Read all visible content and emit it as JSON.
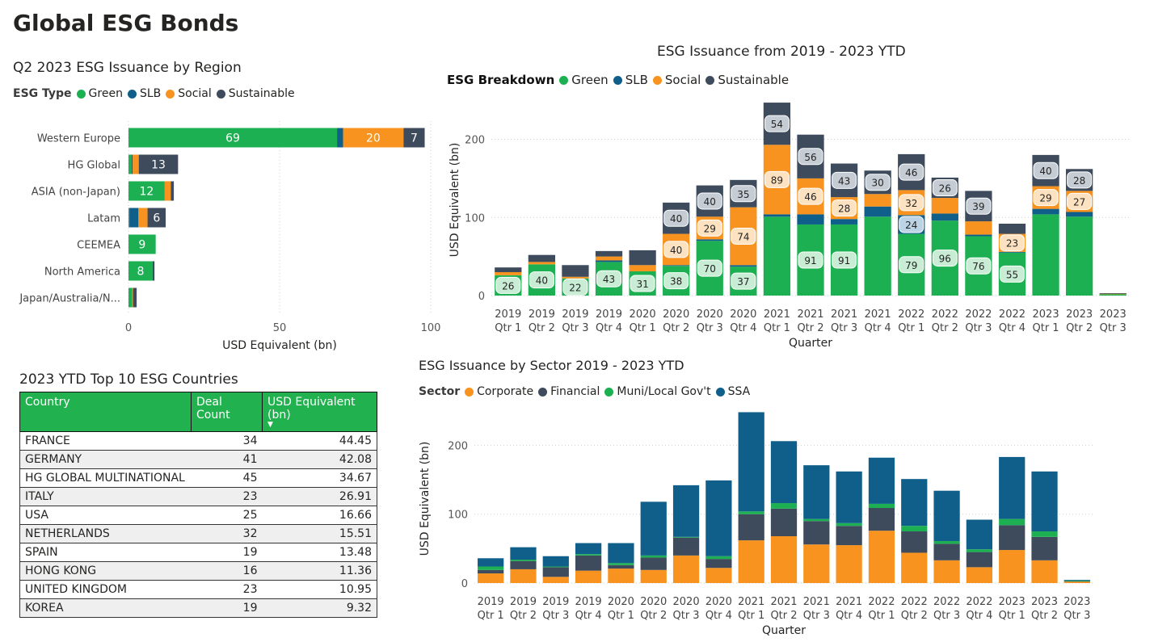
{
  "page": {
    "title": "Global ESG Bonds"
  },
  "colors": {
    "green": "#1DB052",
    "slb": "#0F5F8A",
    "social": "#F7931E",
    "sustainable": "#3D4B5C",
    "corporate": "#F7931E",
    "financial": "#3D4B5C",
    "muni": "#1DB052",
    "ssa": "#0F5F8A",
    "table_header": "#21B14E"
  },
  "region": {
    "title": "Q2 2023 ESG Issuance by Region",
    "legend_title": "ESG Type",
    "legend": [
      "Green",
      "SLB",
      "Social",
      "Sustainable"
    ]
  },
  "quarterly": {
    "title": "ESG Issuance from 2019 - 2023 YTD",
    "legend_title": "ESG Breakdown",
    "legend": [
      "Green",
      "SLB",
      "Social",
      "Sustainable"
    ]
  },
  "sector": {
    "title": "ESG Issuance by Sector 2019 - 2023 YTD",
    "legend_title": "Sector",
    "legend": [
      "Corporate",
      "Financial",
      "Muni/Local Gov't",
      "SSA"
    ]
  },
  "table": {
    "title": "2023 YTD Top 10 ESG Countries",
    "headers": [
      "Country",
      "Deal Count",
      "USD Equivalent (bn)"
    ],
    "sort_indicator": "▼",
    "rows": [
      [
        "FRANCE",
        "34",
        "44.45"
      ],
      [
        "GERMANY",
        "41",
        "42.08"
      ],
      [
        "HG GLOBAL MULTINATIONAL",
        "45",
        "34.67"
      ],
      [
        "ITALY",
        "23",
        "26.91"
      ],
      [
        "USA",
        "25",
        "16.66"
      ],
      [
        "NETHERLANDS",
        "32",
        "15.51"
      ],
      [
        "SPAIN",
        "19",
        "13.48"
      ],
      [
        "HONG KONG",
        "16",
        "11.36"
      ],
      [
        "UNITED KINGDOM",
        "23",
        "10.95"
      ],
      [
        "KOREA",
        "19",
        "9.32"
      ]
    ]
  },
  "chart_data": [
    {
      "type": "bar",
      "orientation": "horizontal",
      "stacked": true,
      "title": "Q2 2023 ESG Issuance by Region",
      "xlabel": "USD Equivalent (bn)",
      "ylabel": "",
      "xlim": [
        0,
        100
      ],
      "xticks": [
        "0",
        "50",
        "100"
      ],
      "grid": true,
      "legend_placement": "top-left",
      "categories": [
        "Western Europe",
        "HG Global",
        "ASIA (non-Japan)",
        "Latam",
        "CEEMEA",
        "North America",
        "Japan/Australia/N..."
      ],
      "series": [
        {
          "name": "Green",
          "values": [
            69,
            1,
            12,
            0.3,
            9,
            8,
            1.2
          ],
          "labels": [
            "69",
            "",
            "12",
            "",
            "9",
            "8",
            ""
          ]
        },
        {
          "name": "SLB",
          "values": [
            2,
            0.4,
            0,
            3,
            0,
            0,
            0
          ],
          "labels": [
            "",
            "",
            "",
            "",
            "",
            "",
            ""
          ]
        },
        {
          "name": "Social",
          "values": [
            20,
            2,
            2,
            3,
            0,
            0,
            0.3
          ],
          "labels": [
            "20",
            "",
            "",
            "",
            "",
            "",
            ""
          ]
        },
        {
          "name": "Sustainable",
          "values": [
            7,
            13,
            1,
            6,
            0,
            0.6,
            1.2
          ],
          "labels": [
            "7",
            "13",
            "",
            "6",
            "",
            "",
            ""
          ]
        }
      ]
    },
    {
      "type": "bar",
      "stacked": true,
      "title": "ESG Issuance from 2019 - 2023 YTD",
      "xlabel": "Quarter",
      "ylabel": "USD Equivalent (bn)",
      "ylim": [
        0,
        245
      ],
      "yticks": [
        "0",
        "100",
        "200"
      ],
      "grid": true,
      "legend_placement": "top-left",
      "categories": [
        "2019 Qtr 1",
        "2019 Qtr 2",
        "2019 Qtr 3",
        "2019 Qtr 4",
        "2020 Qtr 1",
        "2020 Qtr 2",
        "2020 Qtr 3",
        "2020 Qtr 4",
        "2021 Qtr 1",
        "2021 Qtr 2",
        "2021 Qtr 3",
        "2021 Qtr 4",
        "2022 Qtr 1",
        "2022 Qtr 2",
        "2022 Qtr 3",
        "2022 Qtr 4",
        "2023 Qtr 1",
        "2023 Qtr 2",
        "2023 Qtr 3"
      ],
      "series": [
        {
          "name": "Green",
          "values": [
            26,
            40,
            22,
            43,
            31,
            38,
            70,
            37,
            101,
            91,
            91,
            101,
            79,
            96,
            76,
            55,
            104,
            101,
            2
          ],
          "labels": [
            "26",
            "40",
            "22",
            "43",
            "31",
            "38",
            "70",
            "37",
            "",
            "91",
            "91",
            "",
            "79",
            "96",
            "76",
            "55",
            "",
            "",
            ""
          ]
        },
        {
          "name": "SLB",
          "values": [
            0,
            0,
            0,
            2,
            0,
            1,
            2,
            2,
            3,
            13,
            7,
            13,
            24,
            9,
            2,
            1,
            7,
            6,
            0
          ],
          "labels": [
            "",
            "",
            "",
            "",
            "",
            "",
            "",
            "",
            "",
            "",
            "",
            "",
            "24",
            "",
            "",
            "",
            "",
            "",
            ""
          ]
        },
        {
          "name": "Social",
          "values": [
            4,
            3,
            2,
            5,
            8,
            40,
            29,
            74,
            89,
            46,
            28,
            16,
            32,
            20,
            17,
            23,
            29,
            27,
            0.5
          ],
          "labels": [
            "",
            "",
            "",
            "",
            "",
            "40",
            "29",
            "74",
            "89",
            "46",
            "28",
            "",
            "32",
            "",
            "",
            "23",
            "29",
            "27",
            ""
          ]
        },
        {
          "name": "Sustainable",
          "values": [
            6,
            9,
            15,
            7,
            19,
            40,
            40,
            35,
            54,
            56,
            43,
            30,
            46,
            26,
            39,
            13,
            40,
            28,
            0.5
          ],
          "labels": [
            "",
            "",
            "",
            "",
            "",
            "40",
            "40",
            "35",
            "54",
            "56",
            "43",
            "30",
            "46",
            "26",
            "39",
            "",
            "40",
            "28",
            ""
          ]
        }
      ]
    },
    {
      "type": "bar",
      "stacked": true,
      "title": "ESG Issuance by Sector 2019 - 2023 YTD",
      "xlabel": "Quarter",
      "ylabel": "USD Equivalent (bn)",
      "ylim": [
        0,
        245
      ],
      "yticks": [
        "0",
        "100",
        "200"
      ],
      "grid": true,
      "legend_placement": "top-left",
      "categories": [
        "2019 Qtr 1",
        "2019 Qtr 2",
        "2019 Qtr 3",
        "2019 Qtr 4",
        "2020 Qtr 1",
        "2020 Qtr 2",
        "2020 Qtr 3",
        "2020 Qtr 4",
        "2021 Qtr 1",
        "2021 Qtr 2",
        "2021 Qtr 3",
        "2021 Qtr 4",
        "2022 Qtr 1",
        "2022 Qtr 2",
        "2022 Qtr 3",
        "2022 Qtr 4",
        "2023 Qtr 1",
        "2023 Qtr 2",
        "2023 Qtr 3"
      ],
      "series": [
        {
          "name": "Corporate",
          "values": [
            14,
            20,
            9,
            18,
            21,
            19,
            40,
            22,
            62,
            68,
            56,
            55,
            76,
            44,
            33,
            23,
            48,
            33,
            2
          ]
        },
        {
          "name": "Financial",
          "values": [
            5,
            12,
            14,
            22,
            5,
            18,
            26,
            13,
            38,
            40,
            34,
            28,
            33,
            31,
            24,
            22,
            36,
            34,
            1
          ]
        },
        {
          "name": "Muni/Local Gov't",
          "values": [
            5,
            2,
            1,
            2,
            3,
            3,
            1,
            4,
            4,
            8,
            3,
            4,
            6,
            8,
            4,
            4,
            9,
            8,
            0.5
          ]
        },
        {
          "name": "SSA",
          "values": [
            12,
            18,
            15,
            16,
            29,
            78,
            75,
            110,
            144,
            90,
            78,
            75,
            67,
            68,
            73,
            43,
            90,
            87,
            1
          ]
        }
      ]
    }
  ]
}
